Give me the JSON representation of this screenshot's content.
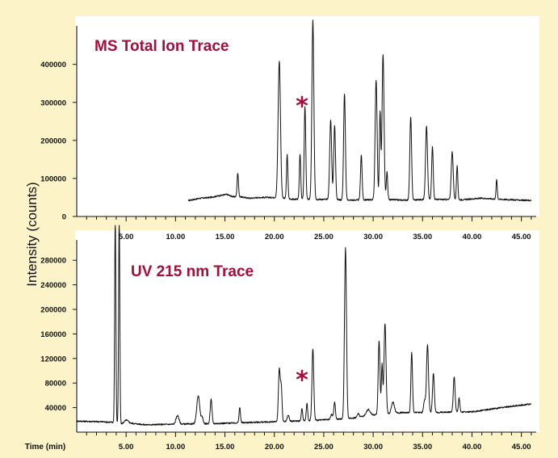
{
  "colors": {
    "background": "#fcf3c8",
    "title": "#a50d3b",
    "asterisk": "#a50d3b",
    "plot_bg": "#ffffff"
  },
  "ylabel_shared": "Intensity (counts)",
  "chart_data": [
    {
      "type": "line",
      "title": "MS Total Ion Trace",
      "xlabel": "",
      "ylabel": "Intensity (counts)",
      "xlim": [
        0,
        46.5
      ],
      "ylim": [
        0,
        480000
      ],
      "x_ticks": [
        5,
        10,
        15,
        20,
        25,
        30,
        35,
        40,
        45
      ],
      "x_tick_labels": [
        "5.00",
        "10.00",
        "15.00",
        "20.00",
        "25.00",
        "30.00",
        "35.00",
        "40.00",
        "45.00"
      ],
      "y_ticks": [
        0,
        100000,
        200000,
        300000,
        400000
      ],
      "y_tick_labels": [
        "0",
        "100000",
        "200000",
        "300000",
        "400000"
      ],
      "annotation": {
        "text": "*",
        "x": 22.8,
        "y": 290000
      },
      "series": [
        {
          "baseline": {
            "x_start": 11.3,
            "x_end": 46.0,
            "start": 45000,
            "end": 42000
          },
          "noise": [
            [
              11.3,
              42000
            ],
            [
              12.5,
              48000
            ],
            [
              13.5,
              50000
            ],
            [
              14.5,
              55000
            ],
            [
              15.2,
              58000
            ],
            [
              15.8,
              52000
            ],
            [
              16.5,
              52000
            ],
            [
              17.5,
              48000
            ],
            [
              18.5,
              50000
            ],
            [
              19.3,
              50000
            ],
            [
              20.0,
              50000
            ],
            [
              22.0,
              45000
            ],
            [
              25.0,
              45000
            ],
            [
              28.0,
              43000
            ],
            [
              31.0,
              45000
            ],
            [
              33.0,
              43000
            ],
            [
              36.0,
              45000
            ],
            [
              39.0,
              44000
            ],
            [
              41.0,
              48000
            ],
            [
              43.0,
              45000
            ],
            [
              46.0,
              42000
            ]
          ],
          "peaks": [
            [
              16.3,
              63000,
              0.07
            ],
            [
              20.5,
              360000,
              0.12
            ],
            [
              21.3,
              115000,
              0.07
            ],
            [
              22.6,
              120000,
              0.07
            ],
            [
              23.1,
              245000,
              0.08
            ],
            [
              23.9,
              470000,
              0.1
            ],
            [
              25.7,
              208000,
              0.1
            ],
            [
              26.1,
              195000,
              0.09
            ],
            [
              27.1,
              280000,
              0.09
            ],
            [
              28.8,
              118000,
              0.08
            ],
            [
              30.3,
              315000,
              0.1
            ],
            [
              30.7,
              230000,
              0.07
            ],
            [
              31.0,
              382000,
              0.1
            ],
            [
              31.4,
              72000,
              0.07
            ],
            [
              33.8,
              218000,
              0.09
            ],
            [
              35.4,
              193000,
              0.1
            ],
            [
              36.0,
              140000,
              0.08
            ],
            [
              38.0,
              125000,
              0.1
            ],
            [
              38.5,
              88000,
              0.07
            ],
            [
              42.5,
              52000,
              0.06
            ]
          ]
        }
      ]
    },
    {
      "type": "line",
      "title": "UV 215 nm Trace",
      "xlabel": "Time (min)",
      "ylabel": "Intensity (counts)",
      "xlim": [
        0,
        46.5
      ],
      "ylim": [
        0,
        300000
      ],
      "x_ticks": [
        5,
        10,
        15,
        20,
        25,
        30,
        35,
        40,
        45
      ],
      "x_tick_labels": [
        "5.00",
        "10.00",
        "15.00",
        "20.00",
        "25.00",
        "30.00",
        "35.00",
        "40.00",
        "45.00"
      ],
      "y_ticks": [
        40000,
        80000,
        120000,
        160000,
        200000,
        240000,
        280000
      ],
      "y_tick_labels": [
        "40000",
        "80000",
        "120000",
        "160000",
        "200000",
        "240000",
        "280000"
      ],
      "annotation": {
        "text": "*",
        "x": 22.8,
        "y": 85000
      },
      "series": [
        {
          "baseline_points": [
            [
              0.0,
              18000
            ],
            [
              2.5,
              17000
            ],
            [
              3.6,
              16000
            ],
            [
              4.4,
              13000
            ],
            [
              5.2,
              15000
            ],
            [
              7.0,
              12000
            ],
            [
              10.0,
              13000
            ],
            [
              14.0,
              14000
            ],
            [
              18.0,
              16000
            ],
            [
              20.5,
              17000
            ],
            [
              22.0,
              18000
            ],
            [
              25.0,
              20000
            ],
            [
              27.5,
              22000
            ],
            [
              30.0,
              28000
            ],
            [
              33.0,
              32000
            ],
            [
              36.0,
              32000
            ],
            [
              38.0,
              33000
            ],
            [
              40.0,
              33000
            ],
            [
              43.0,
              40000
            ],
            [
              44.5,
              43000
            ],
            [
              46.0,
              46000
            ]
          ],
          "peaks": [
            [
              3.9,
              340000,
              0.06
            ],
            [
              4.3,
              340000,
              0.06
            ],
            [
              5.0,
              5000,
              0.2
            ],
            [
              10.2,
              14000,
              0.15
            ],
            [
              12.3,
              46000,
              0.15
            ],
            [
              12.7,
              10000,
              0.1
            ],
            [
              13.6,
              40000,
              0.09
            ],
            [
              16.5,
              25000,
              0.07
            ],
            [
              20.5,
              85000,
              0.09
            ],
            [
              20.7,
              55000,
              0.08
            ],
            [
              21.4,
              10000,
              0.1
            ],
            [
              22.8,
              20000,
              0.07
            ],
            [
              23.3,
              28000,
              0.07
            ],
            [
              23.9,
              117000,
              0.09
            ],
            [
              25.8,
              8000,
              0.1
            ],
            [
              26.1,
              28000,
              0.08
            ],
            [
              27.2,
              278000,
              0.1
            ],
            [
              28.5,
              6000,
              0.1
            ],
            [
              29.5,
              10000,
              0.2
            ],
            [
              30.6,
              120000,
              0.09
            ],
            [
              30.9,
              80000,
              0.07
            ],
            [
              31.2,
              148000,
              0.1
            ],
            [
              32.0,
              18000,
              0.15
            ],
            [
              33.9,
              98000,
              0.08
            ],
            [
              35.2,
              20000,
              0.09
            ],
            [
              35.5,
              110000,
              0.1
            ],
            [
              36.1,
              63000,
              0.09
            ],
            [
              38.2,
              57000,
              0.09
            ],
            [
              38.7,
              22000,
              0.07
            ]
          ]
        }
      ]
    }
  ]
}
